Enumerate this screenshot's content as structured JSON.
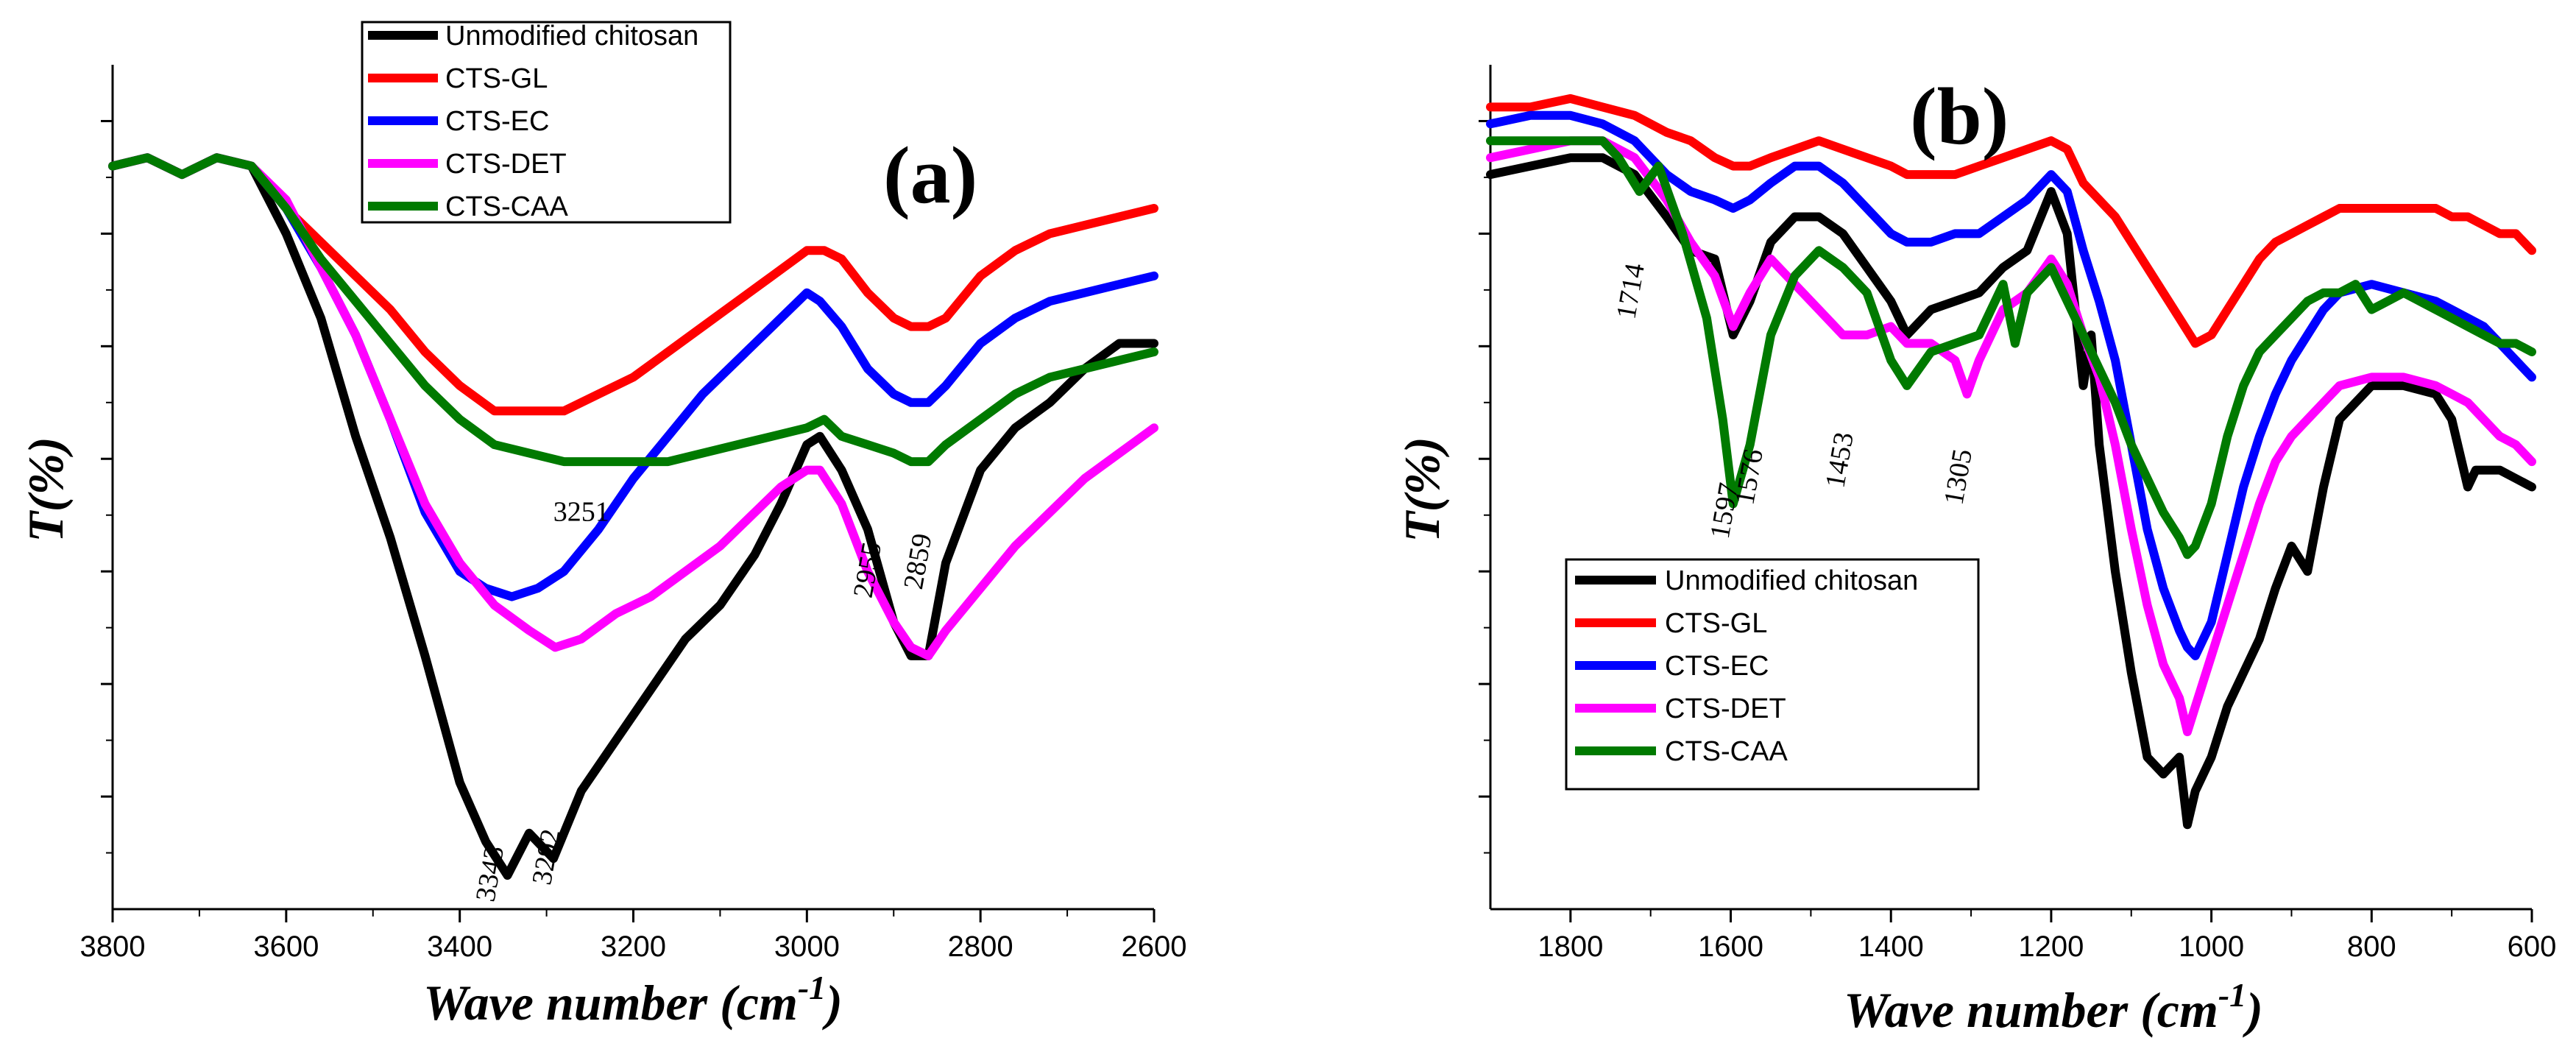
{
  "colors": {
    "unmodified": "#000000",
    "gl": "#ff0000",
    "ec": "#0000ff",
    "det": "#ff00ff",
    "caa": "#007a00"
  },
  "chart_data": [
    {
      "type": "line",
      "panel_label": "(a)",
      "title": "",
      "xlabel": "Wave number (cm-1)",
      "ylabel": "T(%)",
      "x_reversed": true,
      "xlim": [
        3800,
        2600
      ],
      "ylim": [
        0,
        100
      ],
      "x_ticks": [
        3800,
        3600,
        3400,
        3200,
        3000,
        2800,
        2600
      ],
      "y_ticks_labeled": false,
      "legend": [
        "Unmodified chitosan",
        "CTS-GL",
        "CTS-EC",
        "CTS-DET",
        "CTS-CAA"
      ],
      "annotations": [
        {
          "text": "3343",
          "x": 3355,
          "y": 4
        },
        {
          "text": "3292",
          "x": 3290,
          "y": 6
        },
        {
          "text": "3251",
          "x": 3260,
          "y": 46
        },
        {
          "text": "2955",
          "x": 2920,
          "y": 40
        },
        {
          "text": "2859",
          "x": 2862,
          "y": 41
        }
      ],
      "series": [
        {
          "name": "Unmodified chitosan",
          "color_key": "unmodified",
          "x": [
            3800,
            3760,
            3720,
            3680,
            3640,
            3600,
            3560,
            3520,
            3480,
            3440,
            3400,
            3370,
            3345,
            3320,
            3292,
            3260,
            3220,
            3180,
            3140,
            3100,
            3060,
            3030,
            3000,
            2985,
            2960,
            2930,
            2900,
            2880,
            2860,
            2840,
            2800,
            2760,
            2720,
            2680,
            2640,
            2600
          ],
          "y": [
            88,
            89,
            87,
            89,
            88,
            80,
            70,
            56,
            44,
            30,
            15,
            8,
            4,
            9,
            6,
            14,
            20,
            26,
            32,
            36,
            42,
            48,
            55,
            56,
            52,
            45,
            34,
            30,
            30,
            41,
            52,
            57,
            60,
            64,
            67,
            67
          ]
        },
        {
          "name": "CTS-GL",
          "color_key": "gl",
          "x": [
            3800,
            3760,
            3720,
            3680,
            3640,
            3600,
            3560,
            3520,
            3480,
            3440,
            3400,
            3360,
            3320,
            3280,
            3240,
            3200,
            3160,
            3120,
            3080,
            3040,
            3000,
            2980,
            2960,
            2930,
            2900,
            2880,
            2860,
            2840,
            2800,
            2760,
            2720,
            2680,
            2640,
            2600
          ],
          "y": [
            88,
            89,
            87,
            89,
            88,
            83,
            79,
            75,
            71,
            66,
            62,
            59,
            59,
            59,
            61,
            63,
            66,
            69,
            72,
            75,
            78,
            78,
            77,
            73,
            70,
            69,
            69,
            70,
            75,
            78,
            80,
            81,
            82,
            83
          ]
        },
        {
          "name": "CTS-EC",
          "color_key": "ec",
          "x": [
            3800,
            3760,
            3720,
            3680,
            3640,
            3600,
            3560,
            3520,
            3480,
            3440,
            3400,
            3370,
            3340,
            3310,
            3280,
            3240,
            3200,
            3160,
            3120,
            3080,
            3040,
            3000,
            2985,
            2960,
            2930,
            2900,
            2880,
            2860,
            2840,
            2800,
            2760,
            2720,
            2680,
            2640,
            2600
          ],
          "y": [
            88,
            89,
            87,
            89,
            88,
            83,
            76,
            68,
            58,
            47,
            40,
            38,
            37,
            38,
            40,
            45,
            51,
            56,
            61,
            65,
            69,
            73,
            72,
            69,
            64,
            61,
            60,
            60,
            62,
            67,
            70,
            72,
            73,
            74,
            75
          ]
        },
        {
          "name": "CTS-DET",
          "color_key": "det",
          "x": [
            3800,
            3760,
            3720,
            3680,
            3640,
            3600,
            3560,
            3520,
            3480,
            3440,
            3400,
            3360,
            3320,
            3290,
            3260,
            3220,
            3180,
            3140,
            3100,
            3060,
            3030,
            3000,
            2985,
            2960,
            2930,
            2900,
            2880,
            2860,
            2840,
            2800,
            2760,
            2720,
            2680,
            2640,
            2600
          ],
          "y": [
            88,
            89,
            87,
            89,
            88,
            84,
            76,
            68,
            58,
            48,
            41,
            36,
            33,
            31,
            32,
            35,
            37,
            40,
            43,
            47,
            50,
            52,
            52,
            48,
            40,
            34,
            31,
            30,
            33,
            38,
            43,
            47,
            51,
            54,
            57
          ]
        },
        {
          "name": "CTS-CAA",
          "color_key": "caa",
          "x": [
            3800,
            3760,
            3720,
            3680,
            3640,
            3600,
            3560,
            3520,
            3480,
            3440,
            3400,
            3360,
            3320,
            3280,
            3240,
            3200,
            3160,
            3120,
            3080,
            3040,
            3000,
            2980,
            2960,
            2930,
            2900,
            2880,
            2860,
            2840,
            2800,
            2760,
            2720,
            2680,
            2640,
            2600
          ],
          "y": [
            88,
            89,
            87,
            89,
            88,
            83,
            77,
            72,
            67,
            62,
            58,
            55,
            54,
            53,
            53,
            53,
            53,
            54,
            55,
            56,
            57,
            58,
            56,
            55,
            54,
            53,
            53,
            55,
            58,
            61,
            63,
            64,
            65,
            66
          ]
        }
      ]
    },
    {
      "type": "line",
      "panel_label": "(b)",
      "title": "",
      "xlabel": "Wave number (cm-1)",
      "ylabel": "T(%)",
      "x_reversed": true,
      "xlim": [
        1900,
        600
      ],
      "ylim": [
        0,
        100
      ],
      "x_ticks": [
        1800,
        1600,
        1400,
        1200,
        1000,
        800,
        600
      ],
      "y_ticks_labeled": false,
      "legend": [
        "Unmodified chitosan",
        "CTS-GL",
        "CTS-EC",
        "CTS-DET",
        "CTS-CAA"
      ],
      "annotations": [
        {
          "text": "1714",
          "x": 1714,
          "y": 73
        },
        {
          "text": "1597",
          "x": 1597,
          "y": 47
        },
        {
          "text": "1576",
          "x": 1566,
          "y": 51
        },
        {
          "text": "1453",
          "x": 1453,
          "y": 53
        },
        {
          "text": "1305",
          "x": 1305,
          "y": 51
        }
      ],
      "series": [
        {
          "name": "Unmodified chitosan",
          "color_key": "unmodified",
          "x": [
            1900,
            1850,
            1800,
            1760,
            1720,
            1680,
            1650,
            1620,
            1597,
            1576,
            1550,
            1520,
            1490,
            1460,
            1430,
            1400,
            1380,
            1350,
            1320,
            1290,
            1260,
            1230,
            1200,
            1180,
            1160,
            1150,
            1140,
            1120,
            1100,
            1080,
            1060,
            1040,
            1030,
            1020,
            1000,
            980,
            960,
            940,
            920,
            900,
            880,
            860,
            840,
            800,
            760,
            720,
            700,
            680,
            670,
            660,
            640,
            620,
            600
          ],
          "y": [
            87,
            88,
            89,
            89,
            87,
            82,
            78,
            77,
            68,
            72,
            79,
            82,
            82,
            80,
            76,
            72,
            68,
            71,
            72,
            73,
            76,
            78,
            85,
            80,
            62,
            68,
            55,
            40,
            28,
            18,
            16,
            18,
            10,
            14,
            18,
            24,
            28,
            32,
            38,
            43,
            40,
            50,
            58,
            62,
            62,
            61,
            58,
            50,
            52,
            52,
            52,
            51,
            50
          ]
        },
        {
          "name": "CTS-GL",
          "color_key": "gl",
          "x": [
            1900,
            1850,
            1800,
            1760,
            1720,
            1680,
            1650,
            1620,
            1597,
            1576,
            1550,
            1520,
            1490,
            1460,
            1430,
            1400,
            1380,
            1350,
            1320,
            1290,
            1260,
            1230,
            1200,
            1180,
            1160,
            1140,
            1120,
            1100,
            1080,
            1060,
            1040,
            1020,
            1000,
            980,
            960,
            940,
            920,
            900,
            880,
            860,
            840,
            800,
            760,
            720,
            700,
            680,
            660,
            640,
            620,
            600
          ],
          "y": [
            95,
            95,
            96,
            95,
            94,
            92,
            91,
            89,
            88,
            88,
            89,
            90,
            91,
            90,
            89,
            88,
            87,
            87,
            87,
            88,
            89,
            90,
            91,
            90,
            86,
            84,
            82,
            79,
            76,
            73,
            70,
            67,
            68,
            71,
            74,
            77,
            79,
            80,
            81,
            82,
            83,
            83,
            83,
            83,
            82,
            82,
            81,
            80,
            80,
            78
          ]
        },
        {
          "name": "CTS-EC",
          "color_key": "ec",
          "x": [
            1900,
            1850,
            1800,
            1760,
            1720,
            1680,
            1650,
            1620,
            1597,
            1576,
            1550,
            1520,
            1490,
            1460,
            1430,
            1400,
            1380,
            1350,
            1320,
            1290,
            1260,
            1230,
            1200,
            1180,
            1160,
            1140,
            1120,
            1100,
            1080,
            1060,
            1040,
            1030,
            1020,
            1000,
            980,
            960,
            940,
            920,
            900,
            880,
            860,
            840,
            800,
            760,
            720,
            700,
            680,
            660,
            640,
            620,
            600
          ],
          "y": [
            93,
            94,
            94,
            93,
            91,
            87,
            85,
            84,
            83,
            84,
            86,
            88,
            88,
            86,
            83,
            80,
            79,
            79,
            80,
            80,
            82,
            84,
            87,
            85,
            78,
            72,
            65,
            55,
            45,
            38,
            33,
            31,
            30,
            34,
            42,
            50,
            56,
            61,
            65,
            68,
            71,
            73,
            74,
            73,
            72,
            71,
            70,
            69,
            67,
            65,
            63
          ]
        },
        {
          "name": "CTS-DET",
          "color_key": "det",
          "x": [
            1900,
            1850,
            1800,
            1760,
            1720,
            1680,
            1650,
            1620,
            1597,
            1576,
            1550,
            1520,
            1490,
            1460,
            1430,
            1400,
            1380,
            1350,
            1320,
            1305,
            1290,
            1260,
            1230,
            1200,
            1180,
            1160,
            1140,
            1120,
            1100,
            1080,
            1060,
            1040,
            1030,
            1020,
            1000,
            980,
            960,
            940,
            920,
            900,
            880,
            860,
            840,
            800,
            760,
            720,
            700,
            680,
            660,
            640,
            620,
            600
          ],
          "y": [
            89,
            90,
            91,
            91,
            89,
            84,
            79,
            75,
            69,
            73,
            77,
            74,
            71,
            68,
            68,
            69,
            67,
            67,
            65,
            61,
            65,
            71,
            73,
            77,
            74,
            68,
            63,
            55,
            45,
            36,
            29,
            25,
            21,
            24,
            30,
            36,
            42,
            48,
            53,
            56,
            58,
            60,
            62,
            63,
            63,
            62,
            61,
            60,
            58,
            56,
            55,
            53
          ]
        },
        {
          "name": "CTS-CAA",
          "color_key": "caa",
          "x": [
            1900,
            1850,
            1800,
            1760,
            1740,
            1714,
            1690,
            1660,
            1630,
            1610,
            1597,
            1576,
            1550,
            1520,
            1490,
            1460,
            1430,
            1400,
            1380,
            1350,
            1320,
            1290,
            1260,
            1245,
            1230,
            1200,
            1180,
            1160,
            1140,
            1120,
            1100,
            1080,
            1060,
            1040,
            1030,
            1020,
            1000,
            980,
            960,
            940,
            920,
            900,
            880,
            860,
            840,
            820,
            800,
            780,
            760,
            720,
            700,
            680,
            660,
            640,
            620,
            600
          ],
          "y": [
            91,
            91,
            91,
            91,
            89,
            85,
            88,
            80,
            70,
            58,
            48,
            55,
            68,
            75,
            78,
            76,
            73,
            65,
            62,
            66,
            67,
            68,
            74,
            67,
            73,
            76,
            72,
            68,
            64,
            60,
            55,
            51,
            47,
            44,
            42,
            43,
            48,
            56,
            62,
            66,
            68,
            70,
            72,
            73,
            73,
            74,
            71,
            72,
            73,
            71,
            70,
            69,
            68,
            67,
            67,
            66
          ]
        }
      ]
    }
  ]
}
